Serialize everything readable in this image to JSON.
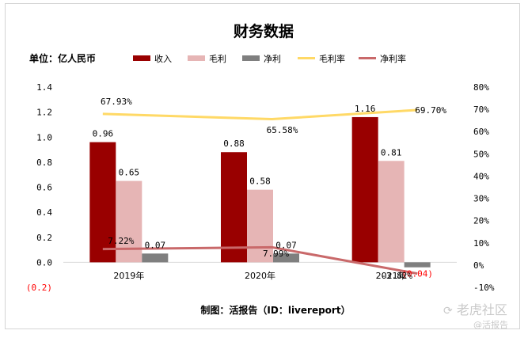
{
  "chart_data": {
    "type": "bar+line",
    "title": "财务数据",
    "unit_label": "单位：亿人民币",
    "categories": [
      "2019年",
      "2020年",
      "2021年"
    ],
    "series": [
      {
        "name": "收入",
        "kind": "bar",
        "axis": "left",
        "color": "#990000",
        "values": [
          0.96,
          0.88,
          1.16
        ],
        "labels": [
          "0.96",
          "0.88",
          "1.16"
        ]
      },
      {
        "name": "毛利",
        "kind": "bar",
        "axis": "left",
        "color": "#e6b5b5",
        "values": [
          0.65,
          0.58,
          0.81
        ],
        "labels": [
          "0.65",
          "0.58",
          "0.81"
        ]
      },
      {
        "name": "净利",
        "kind": "bar",
        "axis": "left",
        "color": "#7f7f7f",
        "values": [
          0.07,
          0.07,
          -0.04
        ],
        "labels": [
          "0.07",
          "0.07",
          "(0.04)"
        ]
      },
      {
        "name": "毛利率",
        "kind": "line",
        "axis": "right",
        "color": "#ffd966",
        "values": [
          67.93,
          65.58,
          69.7
        ],
        "labels": [
          "67.93%",
          "65.58%",
          "69.70%"
        ]
      },
      {
        "name": "净利率",
        "kind": "line",
        "axis": "right",
        "color": "#c9696a",
        "values": [
          7.22,
          7.99,
          -3.82
        ],
        "labels": [
          "7.22%",
          "7.99%",
          "-3.82%"
        ]
      }
    ],
    "left_axis": {
      "min": -0.2,
      "max": 1.4,
      "ticks": [
        "1.4",
        "1.2",
        "1.0",
        "0.8",
        "0.6",
        "0.4",
        "0.2",
        "0.0",
        "(0.2)"
      ],
      "tick_values": [
        1.4,
        1.2,
        1.0,
        0.8,
        0.6,
        0.4,
        0.2,
        0.0,
        -0.2
      ]
    },
    "right_axis": {
      "min": -10,
      "max": 80,
      "ticks": [
        "80%",
        "70%",
        "60%",
        "50%",
        "40%",
        "30%",
        "20%",
        "10%",
        "0%",
        "-10%"
      ],
      "tick_values": [
        80,
        70,
        60,
        50,
        40,
        30,
        20,
        10,
        0,
        -10
      ]
    },
    "legend_position": "top",
    "source": "制图：活报告（ID：livereport）"
  },
  "watermark": {
    "main": "老虎社区",
    "sub": "@活报告"
  },
  "colors": {
    "negative_tick": "#ff0000",
    "axis_text": "#000000"
  }
}
